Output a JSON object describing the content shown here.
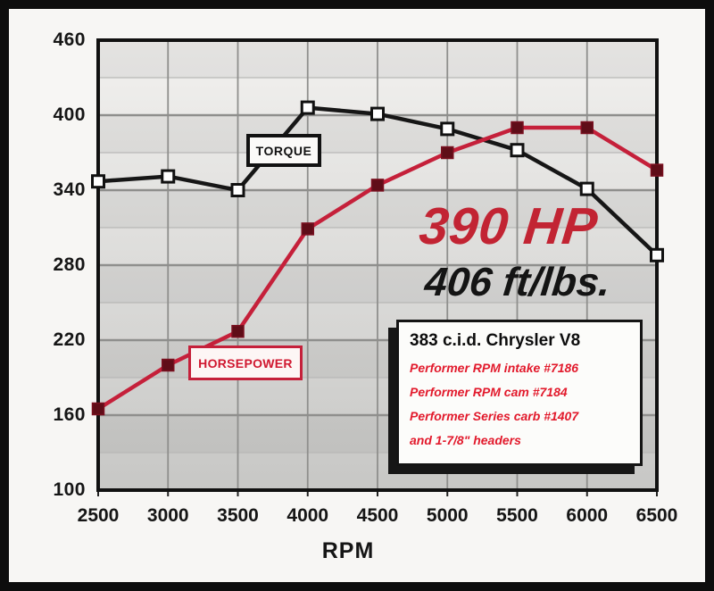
{
  "chart_data": {
    "type": "line",
    "title": "",
    "xlabel": "RPM",
    "ylabel": "",
    "x": [
      2500,
      3000,
      3500,
      4000,
      4500,
      5000,
      5500,
      6000,
      6500
    ],
    "xlim": [
      2500,
      6500
    ],
    "ylim": [
      100,
      460
    ],
    "yticks": [
      100,
      160,
      220,
      280,
      340,
      400,
      460
    ],
    "minor_y_step": 30,
    "grid": "on",
    "legend_position": "on-chart callout boxes",
    "series": [
      {
        "name": "TORQUE",
        "units": "ft/lbs",
        "color": "#161616",
        "marker": "white-square",
        "values": [
          347,
          351,
          340,
          406,
          401,
          389,
          372,
          341,
          288
        ]
      },
      {
        "name": "HORSEPOWER",
        "units": "HP",
        "color": "#c5203a",
        "marker": "dark-red-square",
        "values": [
          165,
          200,
          227,
          309,
          344,
          370,
          390,
          390,
          356
        ]
      }
    ]
  },
  "labels": {
    "torque_box": "TORQUE",
    "horsepower_box": "HORSEPOWER",
    "x_axis_title": "RPM",
    "peak_hp": "390 HP",
    "peak_torque": "406 ft/lbs."
  },
  "spec_box": {
    "title": "383 c.i.d. Chrysler V8",
    "lines": [
      "Performer RPM intake #7186",
      "Performer RPM cam #7184",
      "Performer Series carb #1407",
      "and 1-7/8\" headers"
    ]
  },
  "colors": {
    "frame": "#0d0d0d",
    "canvas_bg": "#f7f6f4",
    "plot_bg_top": "#f2f1ef",
    "plot_bg_bottom": "#c7c7c5",
    "major_grid": "#8f8f8d",
    "minor_grid": "#b8b8b6",
    "torque_line": "#161616",
    "torque_marker_fill": "#ffffff",
    "horsepower_line": "#c5203a",
    "horsepower_marker_fill": "#5f0d18",
    "peak_hp_text": "#c22433",
    "peak_torque_text": "#141414",
    "spec_red_text": "#e21a2c"
  }
}
